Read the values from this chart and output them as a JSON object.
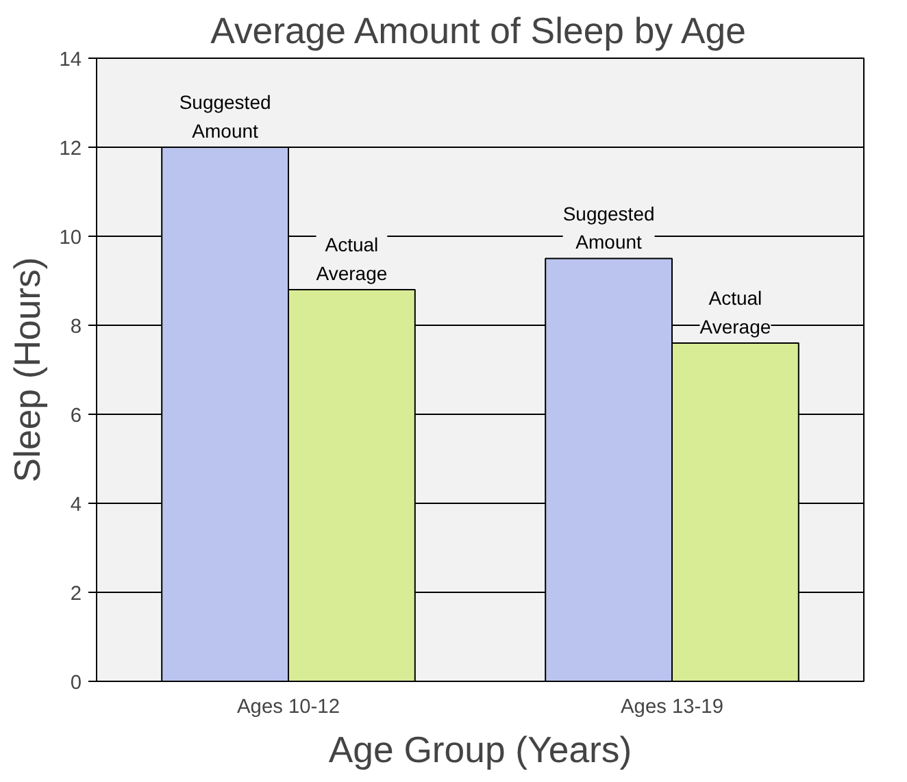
{
  "chart_data": {
    "type": "bar",
    "title": "Average Amount of Sleep by Age",
    "xlabel": "Age Group (Years)",
    "ylabel": "Sleep (Hours)",
    "categories": [
      "Ages 10-12",
      "Ages 13-19"
    ],
    "series": [
      {
        "name": "Suggested Amount",
        "color": "#bac4ee",
        "values": [
          12,
          9.5
        ]
      },
      {
        "name": "Actual Average",
        "color": "#d8ec96",
        "values": [
          8.8,
          7.6
        ]
      }
    ],
    "ylim": [
      0,
      14
    ],
    "yticks": [
      0,
      2,
      4,
      6,
      8,
      10,
      12,
      14
    ],
    "grid": "y"
  }
}
